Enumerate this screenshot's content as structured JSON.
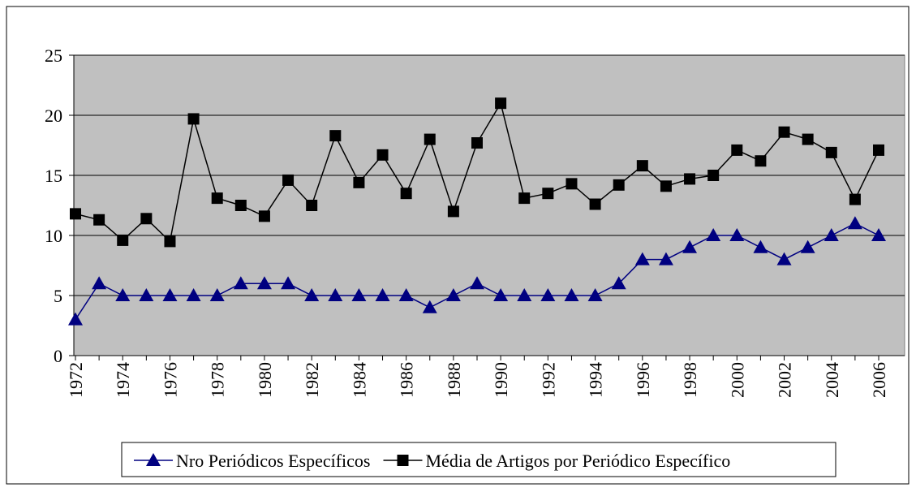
{
  "chart_data": {
    "type": "line",
    "categories": [
      "1972",
      null,
      "1974",
      null,
      "1976",
      null,
      "1978",
      null,
      "1980",
      null,
      "1982",
      null,
      "1984",
      null,
      "1986",
      null,
      "1988",
      null,
      "1990",
      null,
      "1992",
      null,
      "1994",
      null,
      "1996",
      null,
      "1998",
      null,
      "2000",
      null,
      "2002",
      null,
      "2004",
      null,
      "2006"
    ],
    "series": [
      {
        "name": "Nro Periódicos Específicos",
        "color": "#000080",
        "marker": "triangle",
        "values": [
          3,
          6,
          5,
          5,
          5,
          5,
          5,
          6,
          6,
          6,
          5,
          5,
          5,
          5,
          5,
          4,
          5,
          6,
          5,
          5,
          5,
          5,
          5,
          6,
          8,
          8,
          9,
          10,
          10,
          9,
          8,
          9,
          10,
          11,
          10
        ]
      },
      {
        "name": "Média de Artigos por Periódico Específico",
        "color": "#000000",
        "marker": "square",
        "values": [
          11.8,
          11.3,
          9.6,
          11.4,
          9.5,
          19.7,
          13.1,
          12.5,
          11.6,
          14.6,
          12.5,
          18.3,
          14.4,
          16.7,
          13.5,
          18.0,
          12.0,
          17.7,
          21.0,
          13.1,
          13.5,
          14.3,
          12.6,
          14.2,
          15.8,
          14.1,
          14.7,
          15.0,
          17.1,
          16.2,
          18.6,
          18.0,
          16.9,
          13.0,
          17.1
        ]
      }
    ],
    "ylim": [
      0,
      25
    ],
    "yticks": [
      0,
      5,
      10,
      15,
      20,
      25
    ],
    "grid": true,
    "legend": "bottom",
    "plot_background": "#c0c0c0"
  }
}
